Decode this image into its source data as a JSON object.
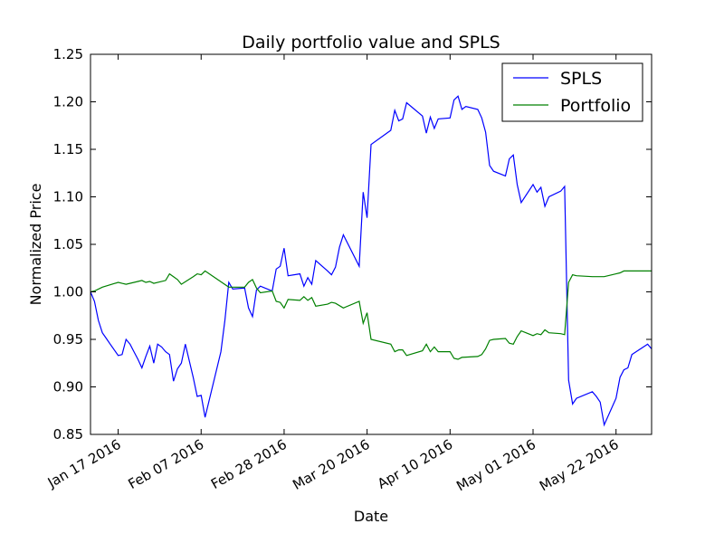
{
  "chart_data": {
    "type": "line",
    "title": "Daily portfolio value and SPLS",
    "xlabel": "Date",
    "ylabel": "Normalized Price",
    "ylim": [
      0.85,
      1.25
    ],
    "xlim": [
      "2016-01-10",
      "2016-05-31"
    ],
    "yticks": [
      0.85,
      0.9,
      0.95,
      1.0,
      1.05,
      1.1,
      1.15,
      1.2,
      1.25
    ],
    "ytick_labels": [
      "0.85",
      "0.90",
      "0.95",
      "1.00",
      "1.05",
      "1.10",
      "1.15",
      "1.20",
      "1.25"
    ],
    "xticks": [
      "2016-01-17",
      "2016-02-07",
      "2016-02-28",
      "2016-03-20",
      "2016-04-10",
      "2016-05-01",
      "2016-05-22"
    ],
    "xtick_labels": [
      "Jan 17 2016",
      "Feb 07 2016",
      "Feb 28 2016",
      "Mar 20 2016",
      "Apr 10 2016",
      "May 01 2016",
      "May 22 2016"
    ],
    "grid": false,
    "legend_position": "top-right",
    "series": [
      {
        "name": "SPLS",
        "color": "#0000ff",
        "points": [
          [
            "2016-01-10",
            1.0
          ],
          [
            "2016-01-11",
            0.99
          ],
          [
            "2016-01-12",
            0.97
          ],
          [
            "2016-01-13",
            0.957
          ],
          [
            "2016-01-14",
            0.951
          ],
          [
            "2016-01-15",
            0.945
          ],
          [
            "2016-01-17",
            0.933
          ],
          [
            "2016-01-18",
            0.934
          ],
          [
            "2016-01-19",
            0.95
          ],
          [
            "2016-01-20",
            0.945
          ],
          [
            "2016-01-21",
            0.937
          ],
          [
            "2016-01-22",
            0.929
          ],
          [
            "2016-01-23",
            0.92
          ],
          [
            "2016-01-24",
            0.932
          ],
          [
            "2016-01-25",
            0.943
          ],
          [
            "2016-01-26",
            0.925
          ],
          [
            "2016-01-27",
            0.945
          ],
          [
            "2016-01-28",
            0.942
          ],
          [
            "2016-01-29",
            0.937
          ],
          [
            "2016-01-30",
            0.934
          ],
          [
            "2016-01-31",
            0.906
          ],
          [
            "2016-02-01",
            0.919
          ],
          [
            "2016-02-02",
            0.925
          ],
          [
            "2016-02-03",
            0.945
          ],
          [
            "2016-02-05",
            0.91
          ],
          [
            "2016-02-06",
            0.89
          ],
          [
            "2016-02-07",
            0.891
          ],
          [
            "2016-02-08",
            0.868
          ],
          [
            "2016-02-12",
            0.937
          ],
          [
            "2016-02-13",
            0.97
          ],
          [
            "2016-02-14",
            1.01
          ],
          [
            "2016-02-15",
            1.003
          ],
          [
            "2016-02-18",
            1.004
          ],
          [
            "2016-02-19",
            0.983
          ],
          [
            "2016-02-20",
            0.974
          ],
          [
            "2016-02-21",
            1.002
          ],
          [
            "2016-02-22",
            1.006
          ],
          [
            "2016-02-25",
            1.001
          ],
          [
            "2016-02-26",
            1.024
          ],
          [
            "2016-02-27",
            1.027
          ],
          [
            "2016-02-28",
            1.046
          ],
          [
            "2016-02-29",
            1.017
          ],
          [
            "2016-03-03",
            1.019
          ],
          [
            "2016-03-04",
            1.006
          ],
          [
            "2016-03-05",
            1.015
          ],
          [
            "2016-03-06",
            1.008
          ],
          [
            "2016-03-07",
            1.033
          ],
          [
            "2016-03-10",
            1.022
          ],
          [
            "2016-03-11",
            1.018
          ],
          [
            "2016-03-12",
            1.026
          ],
          [
            "2016-03-13",
            1.047
          ],
          [
            "2016-03-14",
            1.06
          ],
          [
            "2016-03-18",
            1.027
          ],
          [
            "2016-03-19",
            1.105
          ],
          [
            "2016-03-20",
            1.078
          ],
          [
            "2016-03-21",
            1.155
          ],
          [
            "2016-03-26",
            1.17
          ],
          [
            "2016-03-27",
            1.191
          ],
          [
            "2016-03-28",
            1.18
          ],
          [
            "2016-03-29",
            1.182
          ],
          [
            "2016-03-30",
            1.199
          ],
          [
            "2016-04-03",
            1.185
          ],
          [
            "2016-04-04",
            1.167
          ],
          [
            "2016-04-05",
            1.184
          ],
          [
            "2016-04-06",
            1.172
          ],
          [
            "2016-04-07",
            1.182
          ],
          [
            "2016-04-10",
            1.183
          ],
          [
            "2016-04-11",
            1.202
          ],
          [
            "2016-04-12",
            1.206
          ],
          [
            "2016-04-13",
            1.192
          ],
          [
            "2016-04-14",
            1.195
          ],
          [
            "2016-04-17",
            1.192
          ],
          [
            "2016-04-18",
            1.183
          ],
          [
            "2016-04-19",
            1.168
          ],
          [
            "2016-04-20",
            1.133
          ],
          [
            "2016-04-21",
            1.127
          ],
          [
            "2016-04-24",
            1.122
          ],
          [
            "2016-04-25",
            1.14
          ],
          [
            "2016-04-26",
            1.144
          ],
          [
            "2016-04-27",
            1.113
          ],
          [
            "2016-04-28",
            1.094
          ],
          [
            "2016-05-01",
            1.113
          ],
          [
            "2016-05-02",
            1.105
          ],
          [
            "2016-05-03",
            1.11
          ],
          [
            "2016-05-04",
            1.09
          ],
          [
            "2016-05-05",
            1.1
          ],
          [
            "2016-05-08",
            1.106
          ],
          [
            "2016-05-09",
            1.111
          ],
          [
            "2016-05-10",
            0.907
          ],
          [
            "2016-05-11",
            0.882
          ],
          [
            "2016-05-12",
            0.888
          ],
          [
            "2016-05-16",
            0.895
          ],
          [
            "2016-05-17",
            0.89
          ],
          [
            "2016-05-18",
            0.884
          ],
          [
            "2016-05-19",
            0.86
          ],
          [
            "2016-05-22",
            0.888
          ],
          [
            "2016-05-23",
            0.91
          ],
          [
            "2016-05-24",
            0.918
          ],
          [
            "2016-05-25",
            0.92
          ],
          [
            "2016-05-26",
            0.934
          ],
          [
            "2016-05-30",
            0.945
          ],
          [
            "2016-05-31",
            0.94
          ]
        ]
      },
      {
        "name": "Portfolio",
        "color": "#008000",
        "points": [
          [
            "2016-01-10",
            1.0
          ],
          [
            "2016-01-11",
            1.001
          ],
          [
            "2016-01-13",
            1.005
          ],
          [
            "2016-01-17",
            1.01
          ],
          [
            "2016-01-18",
            1.009
          ],
          [
            "2016-01-19",
            1.008
          ],
          [
            "2016-01-22",
            1.011
          ],
          [
            "2016-01-23",
            1.012
          ],
          [
            "2016-01-24",
            1.01
          ],
          [
            "2016-01-25",
            1.011
          ],
          [
            "2016-01-26",
            1.009
          ],
          [
            "2016-01-29",
            1.012
          ],
          [
            "2016-01-30",
            1.019
          ],
          [
            "2016-01-31",
            1.016
          ],
          [
            "2016-02-01",
            1.013
          ],
          [
            "2016-02-02",
            1.008
          ],
          [
            "2016-02-05",
            1.016
          ],
          [
            "2016-02-06",
            1.019
          ],
          [
            "2016-02-07",
            1.018
          ],
          [
            "2016-02-08",
            1.022
          ],
          [
            "2016-02-14",
            1.005
          ],
          [
            "2016-02-18",
            1.005
          ],
          [
            "2016-02-19",
            1.01
          ],
          [
            "2016-02-20",
            1.013
          ],
          [
            "2016-02-21",
            1.004
          ],
          [
            "2016-02-22",
            0.999
          ],
          [
            "2016-02-25",
            1.001
          ],
          [
            "2016-02-26",
            0.99
          ],
          [
            "2016-02-27",
            0.989
          ],
          [
            "2016-02-28",
            0.983
          ],
          [
            "2016-02-29",
            0.992
          ],
          [
            "2016-03-03",
            0.991
          ],
          [
            "2016-03-04",
            0.995
          ],
          [
            "2016-03-05",
            0.991
          ],
          [
            "2016-03-06",
            0.994
          ],
          [
            "2016-03-07",
            0.985
          ],
          [
            "2016-03-10",
            0.987
          ],
          [
            "2016-03-11",
            0.989
          ],
          [
            "2016-03-12",
            0.988
          ],
          [
            "2016-03-14",
            0.983
          ],
          [
            "2016-03-18",
            0.99
          ],
          [
            "2016-03-19",
            0.967
          ],
          [
            "2016-03-20",
            0.978
          ],
          [
            "2016-03-21",
            0.95
          ],
          [
            "2016-03-26",
            0.945
          ],
          [
            "2016-03-27",
            0.937
          ],
          [
            "2016-03-28",
            0.939
          ],
          [
            "2016-03-29",
            0.939
          ],
          [
            "2016-03-30",
            0.933
          ],
          [
            "2016-04-03",
            0.938
          ],
          [
            "2016-04-04",
            0.945
          ],
          [
            "2016-04-05",
            0.937
          ],
          [
            "2016-04-06",
            0.942
          ],
          [
            "2016-04-07",
            0.937
          ],
          [
            "2016-04-10",
            0.937
          ],
          [
            "2016-04-11",
            0.93
          ],
          [
            "2016-04-12",
            0.929
          ],
          [
            "2016-04-13",
            0.931
          ],
          [
            "2016-04-17",
            0.932
          ],
          [
            "2016-04-18",
            0.934
          ],
          [
            "2016-04-19",
            0.94
          ],
          [
            "2016-04-20",
            0.949
          ],
          [
            "2016-04-21",
            0.95
          ],
          [
            "2016-04-24",
            0.951
          ],
          [
            "2016-04-25",
            0.946
          ],
          [
            "2016-04-26",
            0.945
          ],
          [
            "2016-04-27",
            0.953
          ],
          [
            "2016-04-28",
            0.959
          ],
          [
            "2016-05-01",
            0.954
          ],
          [
            "2016-05-02",
            0.956
          ],
          [
            "2016-05-03",
            0.955
          ],
          [
            "2016-05-04",
            0.96
          ],
          [
            "2016-05-05",
            0.957
          ],
          [
            "2016-05-08",
            0.956
          ],
          [
            "2016-05-09",
            0.955
          ],
          [
            "2016-05-10",
            1.01
          ],
          [
            "2016-05-11",
            1.018
          ],
          [
            "2016-05-12",
            1.017
          ],
          [
            "2016-05-16",
            1.016
          ],
          [
            "2016-05-19",
            1.016
          ],
          [
            "2016-05-22",
            1.019
          ],
          [
            "2016-05-23",
            1.02
          ],
          [
            "2016-05-24",
            1.022
          ],
          [
            "2016-05-31",
            1.022
          ]
        ]
      }
    ]
  }
}
